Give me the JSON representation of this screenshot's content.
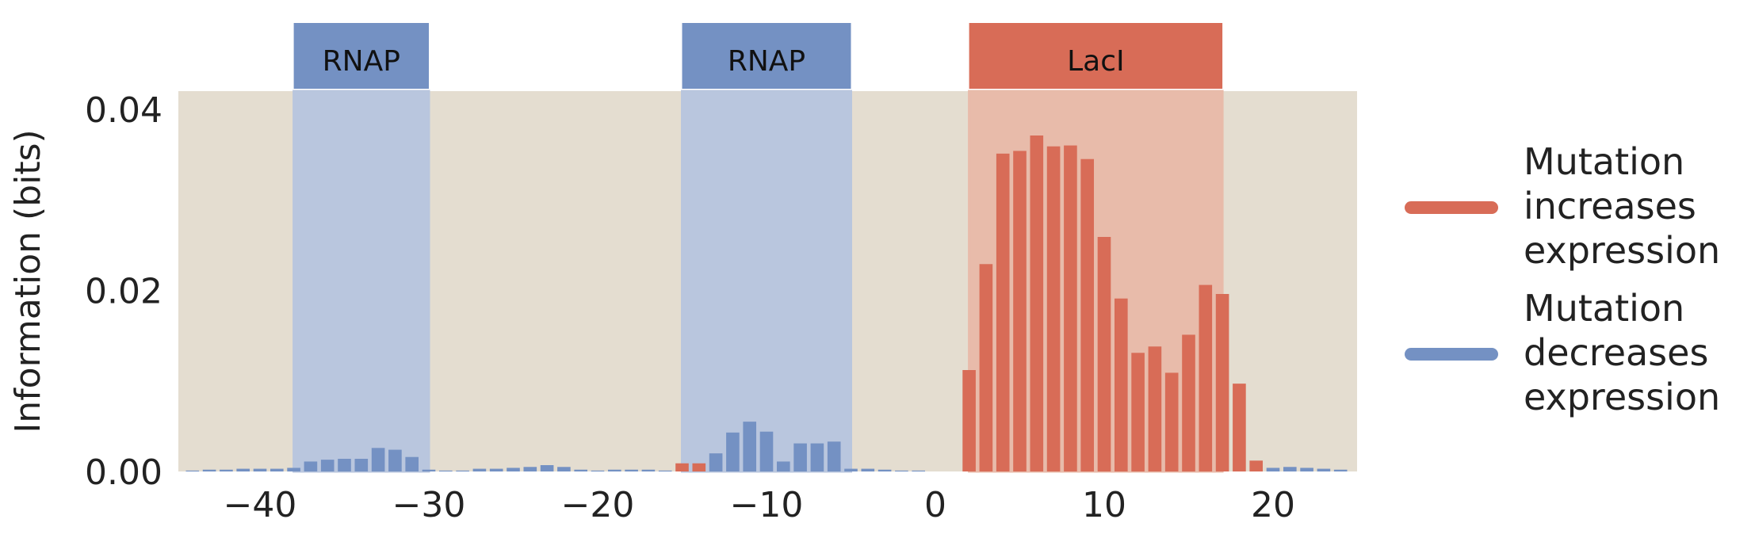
{
  "chart_data": {
    "type": "bar",
    "ylabel": "Information (bits)",
    "xlabel": "",
    "xlim": [
      -45,
      25
    ],
    "ylim": [
      0,
      0.042
    ],
    "xticks": [
      -40,
      -30,
      -20,
      -10,
      0,
      10,
      20
    ],
    "xtick_labels": [
      "−40",
      "−30",
      "−20",
      "−10",
      "0",
      "10",
      "20"
    ],
    "yticks": [
      0.0,
      0.02,
      0.04
    ],
    "ytick_labels": [
      "0.00",
      "0.02",
      "0.04"
    ],
    "grid": false,
    "background_color": "#e4ddd0",
    "legend_position": "right",
    "regions": [
      {
        "label": "RNAP",
        "start": -38,
        "end": -30,
        "color": "#7491c3",
        "fill_color": "#b9c6de"
      },
      {
        "label": "RNAP",
        "start": -15,
        "end": -5,
        "color": "#7491c3",
        "fill_color": "#b9c6de"
      },
      {
        "label": "LacI",
        "start": 2,
        "end": 17,
        "color": "#d86c57",
        "fill_color": "#e8bbaa"
      }
    ],
    "series": [
      {
        "name": "Mutation increases expression",
        "color": "#d86c57",
        "x": [
          -15,
          -14,
          2,
          3,
          4,
          5,
          6,
          7,
          8,
          9,
          10,
          11,
          12,
          13,
          14,
          15,
          16,
          17,
          18,
          19
        ],
        "values": [
          0.0009,
          0.0009,
          0.0112,
          0.0229,
          0.0351,
          0.0354,
          0.0371,
          0.0359,
          0.036,
          0.0345,
          0.0259,
          0.0191,
          0.0131,
          0.0138,
          0.0109,
          0.0151,
          0.0206,
          0.0196,
          0.0097,
          0.0012
        ]
      },
      {
        "name": "Mutation decreases expression",
        "color": "#7491c3",
        "x": [
          -44,
          -43,
          -42,
          -41,
          -40,
          -39,
          -38,
          -37,
          -36,
          -35,
          -34,
          -33,
          -32,
          -31,
          -30,
          -29,
          -28,
          -27,
          -26,
          -25,
          -24,
          -23,
          -22,
          -21,
          -20,
          -19,
          -18,
          -17,
          -16,
          -13,
          -12,
          -11,
          -10,
          -9,
          -8,
          -7,
          -6,
          -5,
          -4,
          -3,
          -2,
          -1,
          20,
          21,
          22,
          23,
          24
        ],
        "values": [
          0.0001,
          0.0002,
          0.0002,
          0.0003,
          0.0003,
          0.0003,
          0.0004,
          0.0011,
          0.0013,
          0.0014,
          0.0014,
          0.0026,
          0.0024,
          0.0016,
          0.0002,
          0.0001,
          0.0001,
          0.0003,
          0.0003,
          0.0004,
          0.0005,
          0.0007,
          0.0005,
          0.0002,
          0.0001,
          0.0002,
          0.0002,
          0.0002,
          0.0001,
          0.002,
          0.0043,
          0.0055,
          0.0044,
          0.0011,
          0.0031,
          0.0031,
          0.0033,
          0.0003,
          0.0003,
          0.0002,
          0.0001,
          0.0001,
          0.0004,
          0.0005,
          0.0004,
          0.0003,
          0.0002
        ]
      }
    ]
  }
}
